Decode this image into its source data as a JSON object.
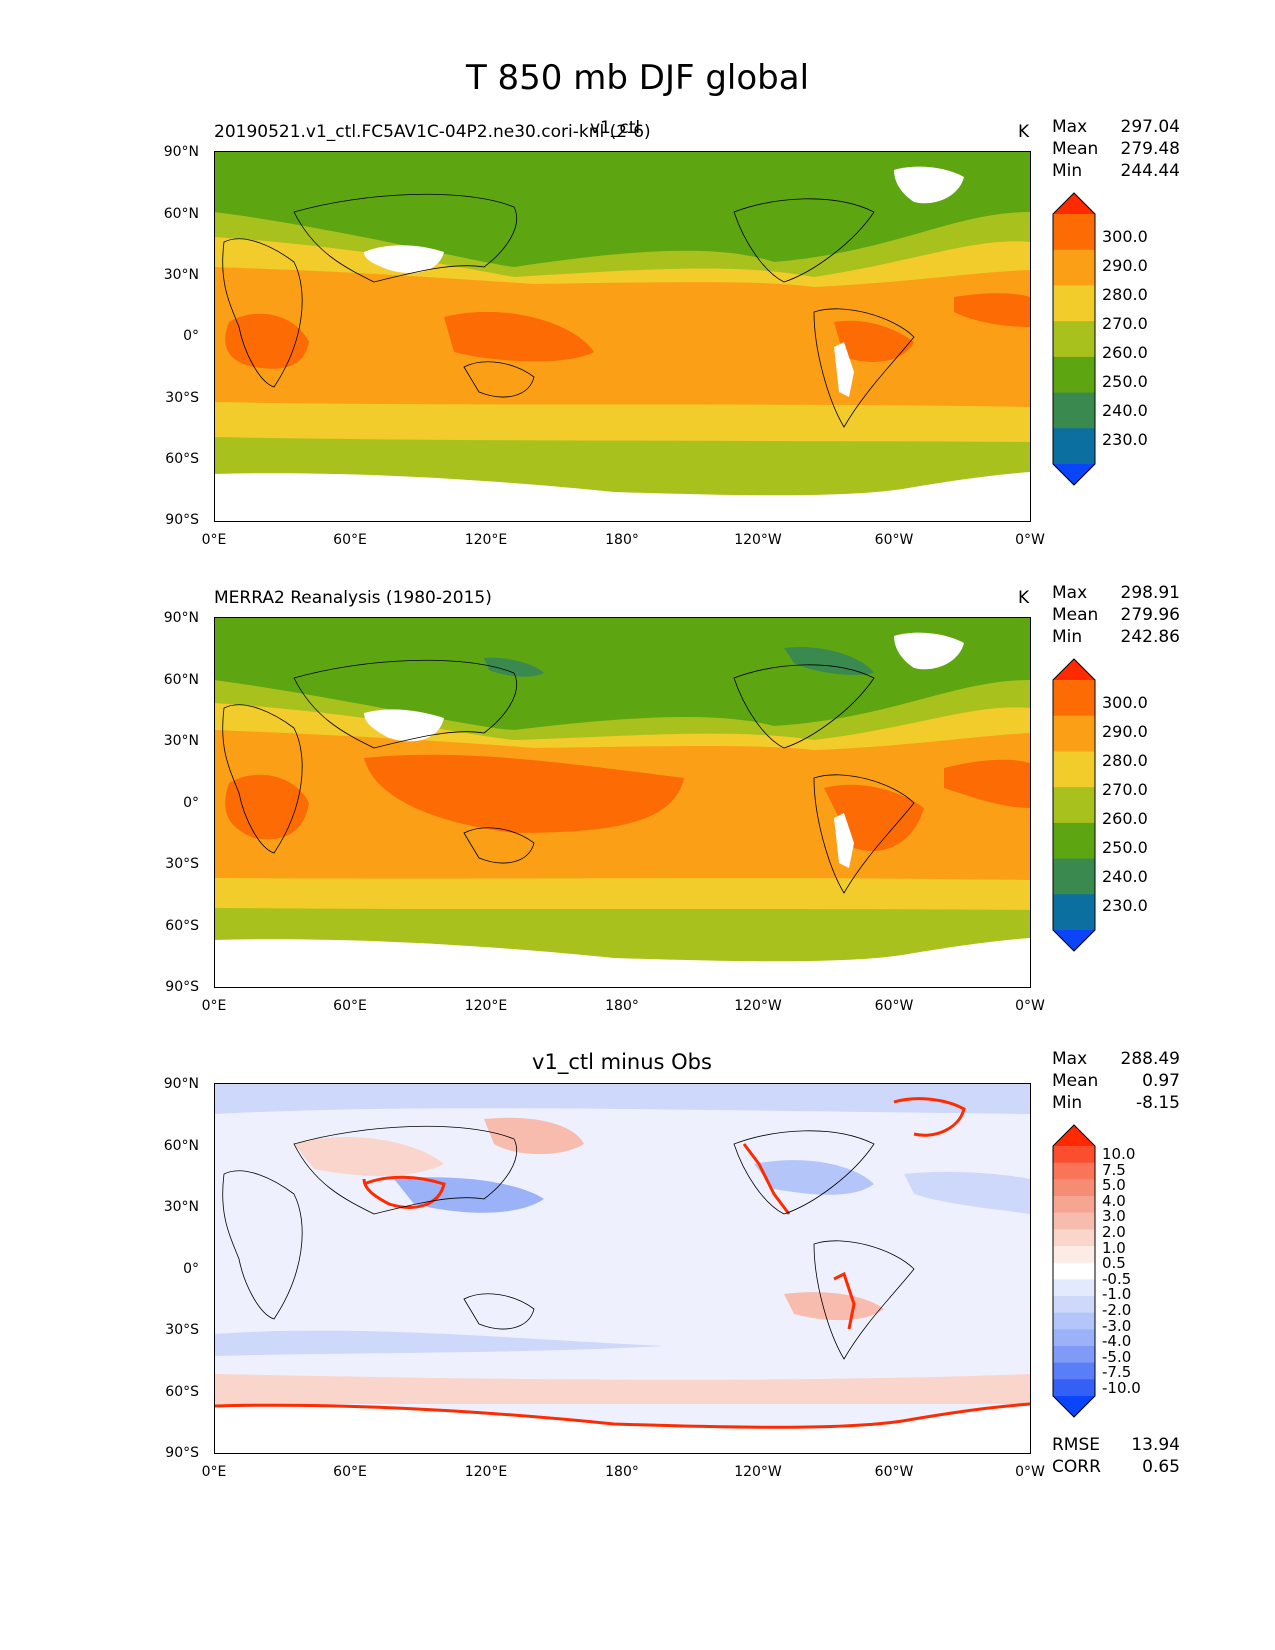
{
  "figure_title": "T 850 mb DJF global",
  "colors": {
    "land_outline": "#000000",
    "missing": "#ffffff"
  },
  "panels": [
    {
      "id": "test",
      "left_title": "20190521.v1_ctl.FC5AV1C-04P2.ne30.cori-knl (2-6)",
      "center_title": "v1_ctl",
      "units": "K",
      "stats": {
        "max_label": "Max",
        "max": "297.04",
        "mean_label": "Mean",
        "mean": "279.48",
        "min_label": "Min",
        "min": "244.44"
      },
      "colorbar_labels": [
        "300.0",
        "290.0",
        "280.0",
        "270.0",
        "260.0",
        "250.0",
        "240.0",
        "230.0"
      ],
      "colorbar_colors": [
        "#ff2a00",
        "#fc6b04",
        "#fba016",
        "#f1cc2a",
        "#a9c11d",
        "#5ea512",
        "#3a8a50",
        "#0b6fa0",
        "#0b45fb"
      ]
    },
    {
      "id": "ref",
      "left_title": "MERRA2 Reanalysis (1980-2015)",
      "center_title": "",
      "units": "K",
      "stats": {
        "max_label": "Max",
        "max": "298.91",
        "mean_label": "Mean",
        "mean": "279.96",
        "min_label": "Min",
        "min": "242.86"
      },
      "colorbar_labels": [
        "300.0",
        "290.0",
        "280.0",
        "270.0",
        "260.0",
        "250.0",
        "240.0",
        "230.0"
      ],
      "colorbar_colors": [
        "#ff2a00",
        "#fc6b04",
        "#fba016",
        "#f1cc2a",
        "#a9c11d",
        "#5ea512",
        "#3a8a50",
        "#0b6fa0",
        "#0b45fb"
      ]
    },
    {
      "id": "diff",
      "left_title": "",
      "center_title": "v1_ctl minus Obs",
      "units": "",
      "stats": {
        "max_label": "Max",
        "max": "288.49",
        "mean_label": "Mean",
        "mean": "0.97",
        "min_label": "Min",
        "min": "-8.15"
      },
      "colorbar_labels": [
        "10.0",
        "7.5",
        "5.0",
        "4.0",
        "3.0",
        "2.0",
        "1.0",
        "0.5",
        "-0.5",
        "-1.0",
        "-2.0",
        "-3.0",
        "-4.0",
        "-5.0",
        "-7.5",
        "-10.0"
      ],
      "colorbar_colors": [
        "#ff2a00",
        "#fb4e2e",
        "#f97458",
        "#f78c76",
        "#f7a593",
        "#f8bcae",
        "#fad5cb",
        "#fdebe6",
        "#ffffff",
        "#e4eafd",
        "#cdd8fb",
        "#b4c5fa",
        "#9bb2f8",
        "#7f9bf7",
        "#5a7ef7",
        "#3560f8",
        "#0b45fb"
      ],
      "rmse_label": "RMSE",
      "rmse": "13.94",
      "corr_label": "CORR",
      "corr": "0.65"
    }
  ],
  "axes": {
    "y_ticks": [
      "90°N",
      "60°N",
      "30°N",
      "0°",
      "30°S",
      "60°S",
      "90°S"
    ],
    "x_ticks": [
      "0°E",
      "60°E",
      "120°E",
      "180°",
      "120°W",
      "60°W",
      "0°W"
    ]
  },
  "chart_data": [
    {
      "type": "heatmap",
      "title": "v1_ctl",
      "subtitle": "20190521.v1_ctl.FC5AV1C-04P2.ne30.cori-knl (2-6)",
      "units": "K",
      "projection": "PlateCarree, central longitude 180",
      "xlim": [
        0,
        360
      ],
      "ylim": [
        -90,
        90
      ],
      "zonal_bands": [
        {
          "lat_range": [
            70,
            90
          ],
          "value_range": [
            250,
            260
          ]
        },
        {
          "lat_range": [
            45,
            70
          ],
          "value_range": [
            250,
            260
          ]
        },
        {
          "lat_range": [
            35,
            45
          ],
          "value_range": [
            260,
            270
          ]
        },
        {
          "lat_range": [
            25,
            35
          ],
          "value_range": [
            270,
            280
          ]
        },
        {
          "lat_range": [
            -35,
            25
          ],
          "value_range": [
            280,
            290
          ]
        },
        {
          "lat_range": [
            -50,
            -35
          ],
          "value_range": [
            270,
            280
          ]
        },
        {
          "lat_range": [
            -70,
            -50
          ],
          "value_range": [
            260,
            270
          ]
        }
      ],
      "stats": {
        "max": 297.04,
        "mean": 279.48,
        "min": 244.44
      },
      "levels": [
        230,
        240,
        250,
        260,
        270,
        280,
        290,
        300
      ]
    },
    {
      "type": "heatmap",
      "title": "MERRA2 Reanalysis (1980-2015)",
      "units": "K",
      "xlim": [
        0,
        360
      ],
      "ylim": [
        -90,
        90
      ],
      "stats": {
        "max": 298.91,
        "mean": 279.96,
        "min": 242.86
      },
      "levels": [
        230,
        240,
        250,
        260,
        270,
        280,
        290,
        300
      ]
    },
    {
      "type": "heatmap",
      "title": "v1_ctl minus Obs",
      "xlim": [
        0,
        360
      ],
      "ylim": [
        -90,
        90
      ],
      "stats": {
        "max": 288.49,
        "mean": 0.97,
        "min": -8.15,
        "rmse": 13.94,
        "corr": 0.65
      },
      "levels": [
        -10,
        -7.5,
        -5,
        -4,
        -3,
        -2,
        -1,
        -0.5,
        0.5,
        1,
        2,
        3,
        4,
        5,
        7.5,
        10
      ]
    }
  ]
}
